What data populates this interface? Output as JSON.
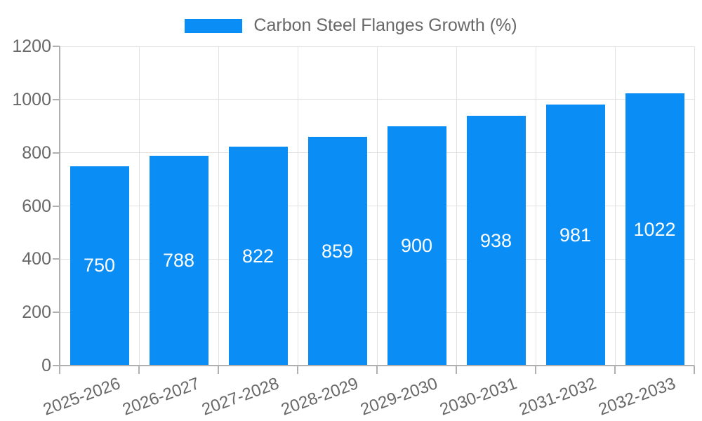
{
  "chart_data": {
    "type": "bar",
    "title": "Carbon Steel Flanges Growth (%)",
    "legend_label": "Carbon Steel Flanges Growth (%)",
    "legend_position": "top-center",
    "categories": [
      "2025-2026",
      "2026-2027",
      "2027-2028",
      "2028-2029",
      "2029-2030",
      "2030-2031",
      "2031-2032",
      "2032-2033"
    ],
    "values": [
      750,
      788,
      822,
      859,
      900,
      938,
      981,
      1022
    ],
    "xlabel": "",
    "ylabel": "",
    "ylim": [
      0,
      1200
    ],
    "y_ticks": [
      0,
      200,
      400,
      600,
      800,
      1000,
      1200
    ],
    "grid": true,
    "x_label_rotation_deg": -20,
    "bar_color": "#0a8df4",
    "value_label_color": "#ffffff",
    "axis_text_color": "#686868",
    "grid_color": "#e2e2e2",
    "axis_line_color": "#b0b0b0",
    "background_color": "#ffffff"
  }
}
